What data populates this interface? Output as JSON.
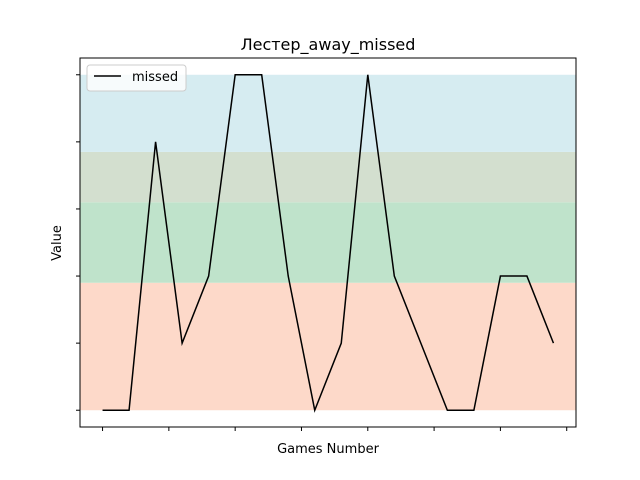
{
  "chart_data": {
    "type": "line",
    "title": "Лестер_away_missed",
    "xlabel": "Games Number",
    "ylabel": "Value",
    "x": [
      0,
      1,
      2,
      3,
      4,
      5,
      6,
      7,
      8,
      9,
      10,
      11,
      12,
      13,
      14,
      15,
      16,
      17
    ],
    "series": [
      {
        "name": "missed",
        "color": "#000000",
        "values": [
          0,
          0,
          4,
          1,
          2,
          5,
          5,
          2,
          0,
          1,
          5,
          2,
          1,
          0,
          0,
          2,
          2,
          1
        ]
      }
    ],
    "xlim": [
      -0.85,
      17.85
    ],
    "ylim": [
      -0.25,
      5.25
    ],
    "x_tick_values": [
      0,
      2.5,
      5,
      7.5,
      10,
      12.5,
      15,
      17.5
    ],
    "y_tick_values": [
      0,
      1,
      2,
      3,
      4,
      5
    ],
    "tick_labels_visible": false,
    "grid": false,
    "legend_position": "top-left",
    "bands": [
      {
        "from": 0,
        "to": 1.9,
        "color": "#fdd9c9"
      },
      {
        "from": 1.9,
        "to": 3.1,
        "color": "#bfe3cb"
      },
      {
        "from": 3.1,
        "to": 3.85,
        "color": "#d3dfcf"
      },
      {
        "from": 3.85,
        "to": 5,
        "color": "#d6ecf1"
      }
    ]
  }
}
